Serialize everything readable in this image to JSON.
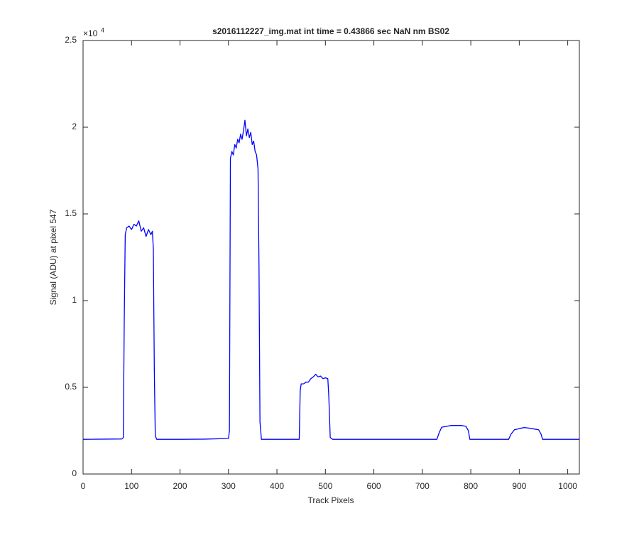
{
  "chart_data": {
    "type": "line",
    "title": "s2016112227_img.mat int time = 0.43866 sec  NaN nm BS02",
    "x_label": "Track Pixels",
    "y_label": "Signal (ADU) at pixel 547",
    "y_multiplier": "×10",
    "y_exponent": "4",
    "color": "#0000ff",
    "x": [
      0,
      40,
      80,
      83,
      85,
      87,
      90,
      95,
      100,
      105,
      110,
      115,
      120,
      125,
      130,
      135,
      140,
      143,
      145,
      147,
      149,
      152,
      200,
      250,
      300,
      302,
      304,
      307,
      310,
      313,
      316,
      319,
      322,
      325,
      328,
      331,
      334,
      337,
      340,
      343,
      346,
      349,
      352,
      355,
      358,
      361,
      363,
      365,
      368,
      400,
      446,
      448,
      450,
      455,
      460,
      465,
      470,
      475,
      480,
      485,
      490,
      495,
      500,
      505,
      507,
      510,
      515,
      600,
      700,
      730,
      735,
      740,
      750,
      760,
      770,
      780,
      790,
      795,
      798,
      850,
      878,
      883,
      890,
      900,
      910,
      920,
      930,
      940,
      945,
      948,
      1000,
      1024
    ],
    "values": [
      0.2,
      0.201,
      0.202,
      0.21,
      0.9,
      1.38,
      1.42,
      1.43,
      1.41,
      1.44,
      1.43,
      1.46,
      1.4,
      1.42,
      1.37,
      1.41,
      1.38,
      1.4,
      1.3,
      0.6,
      0.22,
      0.2,
      0.2,
      0.201,
      0.205,
      0.25,
      1.82,
      1.86,
      1.84,
      1.9,
      1.88,
      1.93,
      1.91,
      1.96,
      1.93,
      1.98,
      2.04,
      1.95,
      1.99,
      1.94,
      1.97,
      1.9,
      1.92,
      1.86,
      1.84,
      1.76,
      1.2,
      0.3,
      0.2,
      0.2,
      0.2,
      0.48,
      0.52,
      0.52,
      0.53,
      0.53,
      0.55,
      0.56,
      0.575,
      0.56,
      0.565,
      0.55,
      0.555,
      0.55,
      0.45,
      0.21,
      0.2,
      0.2,
      0.2,
      0.2,
      0.24,
      0.27,
      0.275,
      0.28,
      0.28,
      0.28,
      0.275,
      0.25,
      0.2,
      0.2,
      0.2,
      0.23,
      0.255,
      0.262,
      0.268,
      0.265,
      0.26,
      0.255,
      0.23,
      0.2,
      0.2,
      0.2
    ],
    "xlim": [
      0,
      1024
    ],
    "ylim": [
      0,
      2.5
    ],
    "xticks": [
      0,
      100,
      200,
      300,
      400,
      500,
      600,
      700,
      800,
      900,
      1000
    ],
    "yticks": [
      0,
      0.5,
      1,
      1.5,
      2,
      2.5
    ],
    "grid": false
  }
}
